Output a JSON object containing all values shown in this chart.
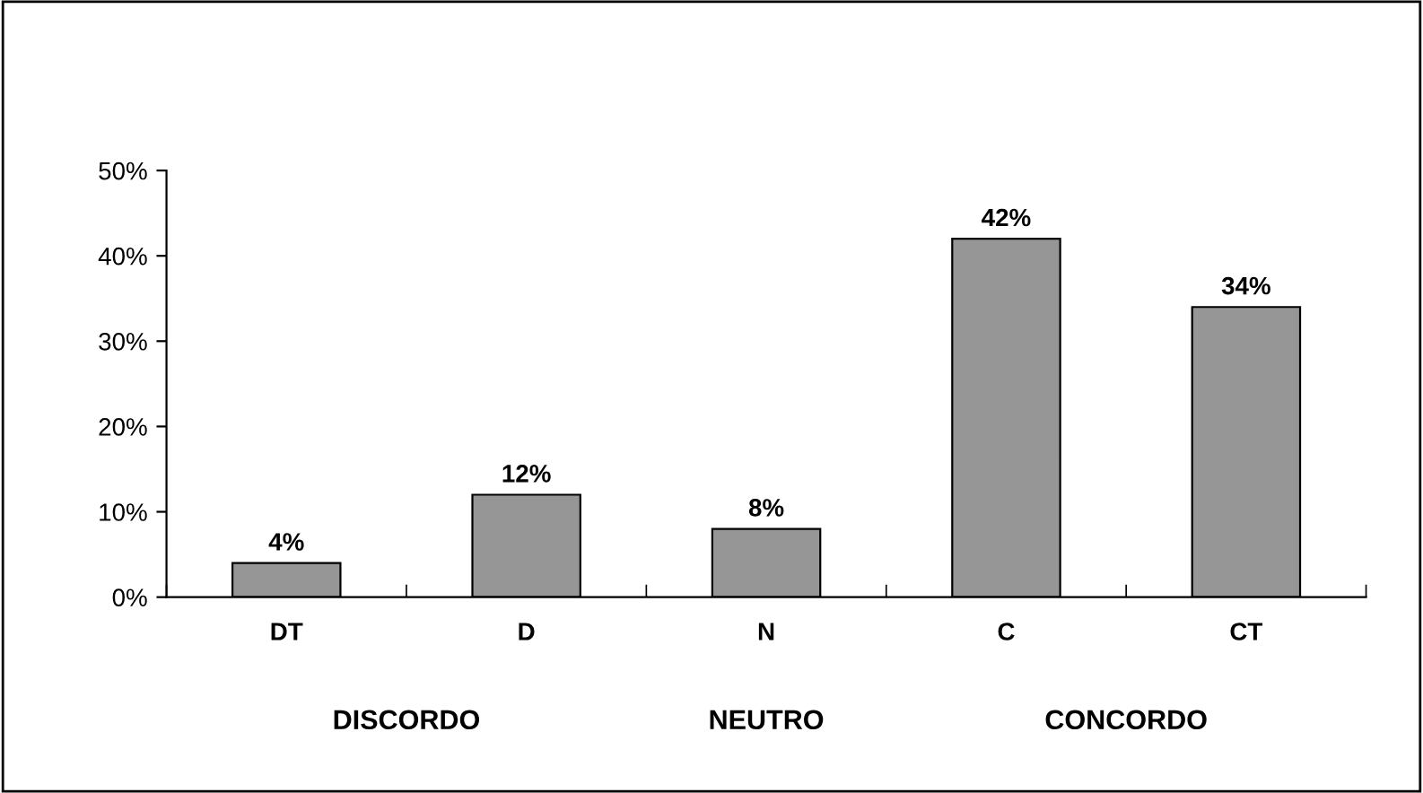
{
  "chart_data": {
    "type": "bar",
    "categories": [
      "DT",
      "D",
      "N",
      "C",
      "CT"
    ],
    "values": [
      4,
      12,
      8,
      42,
      34
    ],
    "value_labels": [
      "4%",
      "12%",
      "8%",
      "42%",
      "34%"
    ],
    "color": "#969696",
    "ylim": [
      0,
      50
    ],
    "yticks": [
      {
        "value": 0,
        "label": "0%"
      },
      {
        "value": 10,
        "label": "10%"
      },
      {
        "value": 20,
        "label": "20%"
      },
      {
        "value": 30,
        "label": "30%"
      },
      {
        "value": 40,
        "label": "40%"
      },
      {
        "value": 50,
        "label": "50%"
      }
    ],
    "grid": false,
    "legend": false,
    "annotations": [
      "DISCORDO",
      "NEUTRO",
      "CONCORDO"
    ]
  }
}
